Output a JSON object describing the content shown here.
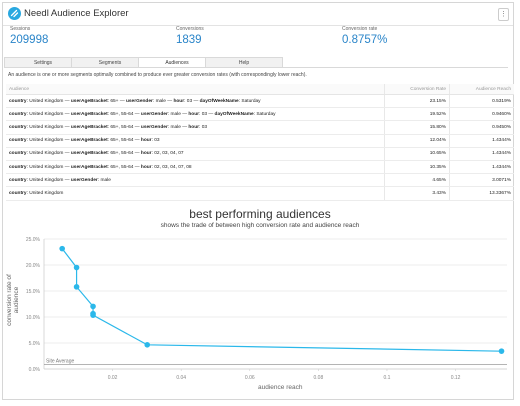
{
  "app": {
    "title": "Needl Audience Explorer",
    "menu_glyph": "⋮"
  },
  "kpis": [
    {
      "label": "Sessions",
      "value": "209998"
    },
    {
      "label": "Conversions",
      "value": "1839"
    },
    {
      "label": "Conversion rate",
      "value": "0.8757%"
    }
  ],
  "tabs": [
    {
      "label": "Settings",
      "active": false
    },
    {
      "label": "Segments",
      "active": false
    },
    {
      "label": "Audiences",
      "active": true
    },
    {
      "label": "Help",
      "active": false
    }
  ],
  "description": "An audience is one or more segments optimally combined to produce ever greater conversion rates (with correspondingly lower reach).",
  "table": {
    "headers": [
      "Audience",
      "Conversion Rate",
      "Audience Reach"
    ],
    "rows": [
      {
        "segments": [
          [
            "country",
            "United Kingdom"
          ],
          [
            "userAgeBracket",
            "65+"
          ],
          [
            "userGender",
            "male"
          ],
          [
            "hour",
            "03"
          ],
          [
            "dayOfWeekName",
            "Saturday"
          ]
        ],
        "rate": "23.15%",
        "reach": "0.5319%"
      },
      {
        "segments": [
          [
            "country",
            "United Kingdom"
          ],
          [
            "userAgeBracket",
            "65+, 55-64"
          ],
          [
            "userGender",
            "male"
          ],
          [
            "hour",
            "03"
          ],
          [
            "dayOfWeekName",
            "Saturday"
          ]
        ],
        "rate": "19.52%",
        "reach": "0.9460%"
      },
      {
        "segments": [
          [
            "country",
            "United Kingdom"
          ],
          [
            "userAgeBracket",
            "65+, 55-64"
          ],
          [
            "userGender",
            "male"
          ],
          [
            "hour",
            "03"
          ]
        ],
        "rate": "15.80%",
        "reach": "0.9450%"
      },
      {
        "segments": [
          [
            "country",
            "United Kingdom"
          ],
          [
            "userAgeBracket",
            "65+, 55-64"
          ],
          [
            "hour",
            "03"
          ]
        ],
        "rate": "12.04%",
        "reach": "1.4344%"
      },
      {
        "segments": [
          [
            "country",
            "United Kingdom"
          ],
          [
            "userAgeBracket",
            "65+, 55-64"
          ],
          [
            "hour",
            "02, 03, 04, 07"
          ]
        ],
        "rate": "10.65%",
        "reach": "1.4344%"
      },
      {
        "segments": [
          [
            "country",
            "United Kingdom"
          ],
          [
            "userAgeBracket",
            "65+, 55-64"
          ],
          [
            "hour",
            "02, 03, 04, 07, 08"
          ]
        ],
        "rate": "10.35%",
        "reach": "1.4344%"
      },
      {
        "segments": [
          [
            "country",
            "United Kingdom"
          ],
          [
            "userGender",
            "male"
          ]
        ],
        "rate": "4.65%",
        "reach": "3.0071%"
      },
      {
        "segments": [
          [
            "country",
            "United Kingdom"
          ]
        ],
        "rate": "3.43%",
        "reach": "13.3367%"
      }
    ]
  },
  "chart_data": {
    "type": "line",
    "title": "best performing audiences",
    "subtitle": "shows the trade of between high conversion rate and audience reach",
    "xlabel": "audience reach",
    "ylabel": "conversion rate of audience",
    "xlim": [
      0.0,
      0.135
    ],
    "ylim": [
      0,
      25
    ],
    "xticks": [
      "0.02",
      "0.04",
      "0.06",
      "0.08",
      "0.10",
      "0.12"
    ],
    "xtick_values": [
      0.02,
      0.04,
      0.06,
      0.08,
      0.1,
      0.12
    ],
    "yticks": [
      "0.0%",
      "5.0%",
      "10.0%",
      "15.0%",
      "20.0%",
      "25.0%"
    ],
    "ytick_values": [
      0,
      5,
      10,
      15,
      20,
      25
    ],
    "reference_line": {
      "label": "Site Average",
      "value": 0.8757
    },
    "x": [
      0.0053,
      0.0095,
      0.0095,
      0.0143,
      0.0143,
      0.0143,
      0.0301,
      0.1334
    ],
    "y": [
      23.15,
      19.52,
      15.8,
      12.04,
      10.65,
      10.35,
      4.65,
      3.43
    ],
    "color": "#2bb8ea"
  }
}
